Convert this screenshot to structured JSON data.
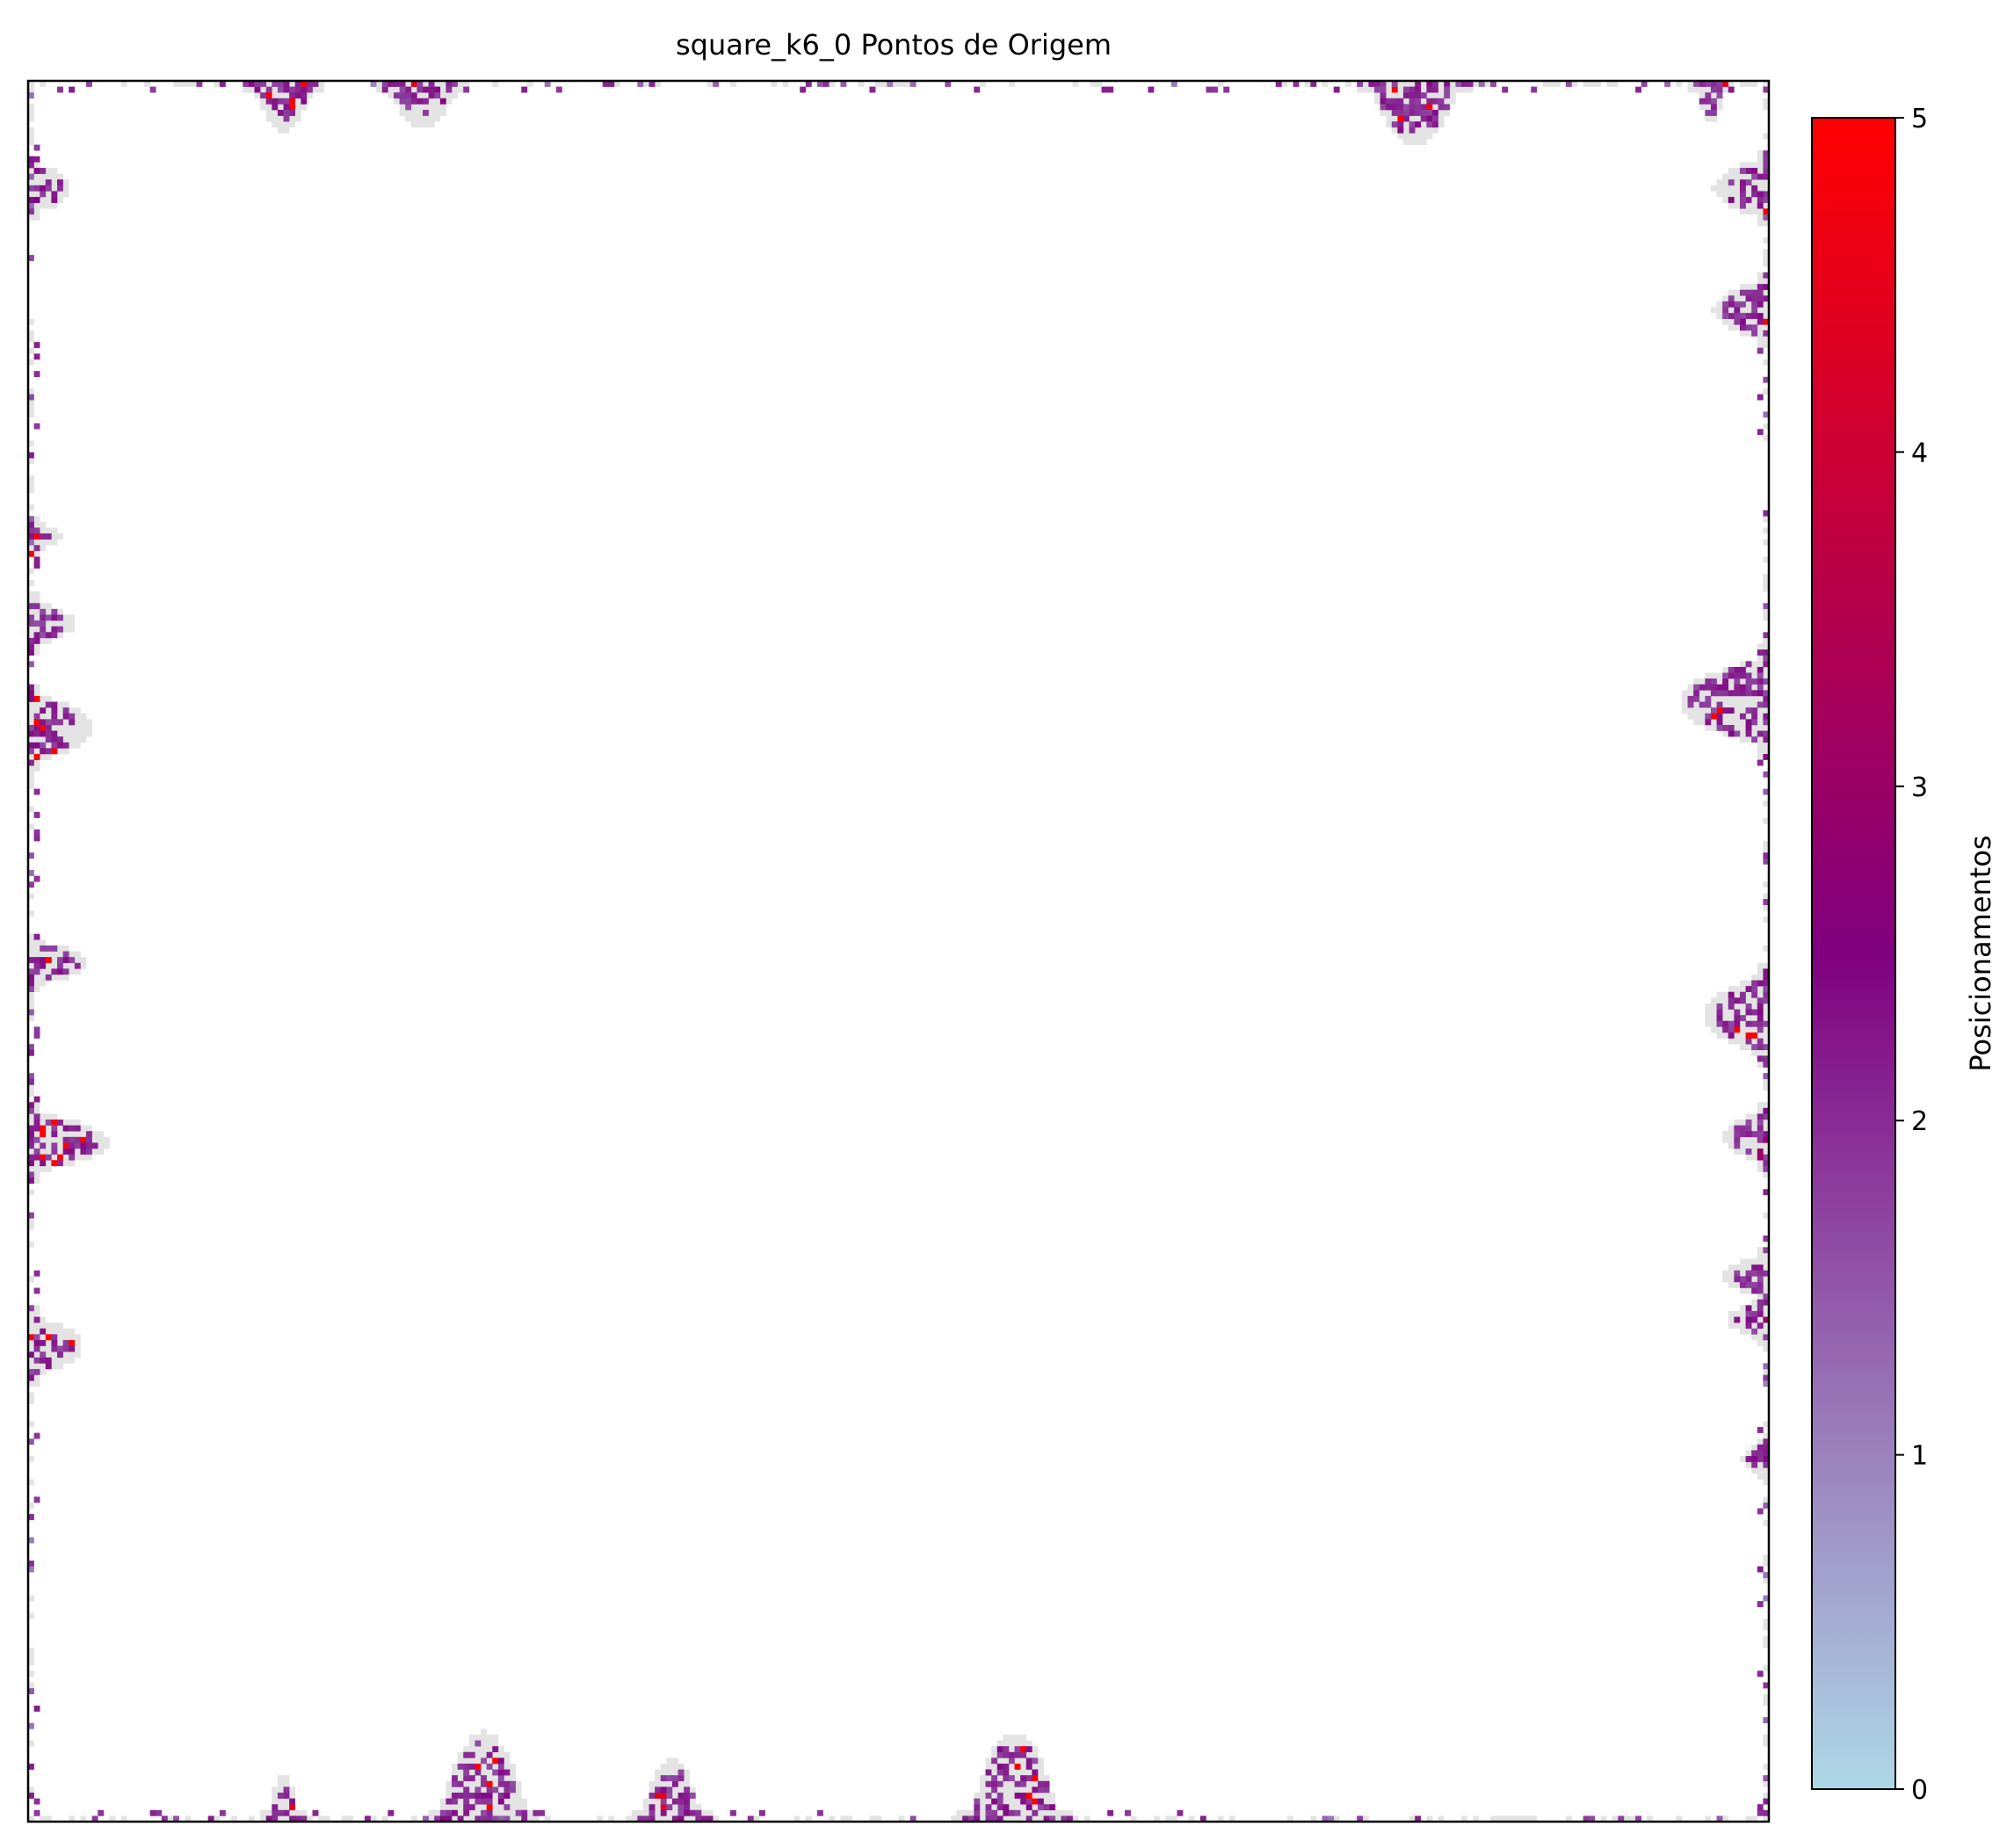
{
  "chart_data": {
    "type": "heatmap",
    "title": "square_k6_0 Pontos de Origem",
    "xlabel": "",
    "ylabel": "",
    "x_ticks_visible": false,
    "y_ticks_visible": false,
    "grid": false,
    "value_range": [
      0,
      5
    ],
    "background_value": "empty",
    "colormap": {
      "stops": [
        {
          "value": 0,
          "color": "#add8e6"
        },
        {
          "value": 2.5,
          "color": "#800080"
        },
        {
          "value": 5,
          "color": "#ff0000"
        }
      ],
      "empty_color": "#ffffff",
      "edge_halo_color": "#e3e3e3"
    },
    "colorbar": {
      "label": "Posicionamentos",
      "ticks": [
        0,
        1,
        2,
        3,
        4,
        5
      ],
      "placement": "right"
    },
    "distribution": "All nonzero cells lie along the border of the square domain; interior is empty. Values mostly around 2, isolated cells up to 5.",
    "clusters": [
      {
        "edge": "top",
        "pos": 0.145,
        "width": 0.03,
        "depth": 0.022,
        "peak": 5
      },
      {
        "edge": "top",
        "pos": 0.225,
        "width": 0.035,
        "depth": 0.02,
        "peak": 4.5
      },
      {
        "edge": "top",
        "pos": 0.795,
        "width": 0.045,
        "depth": 0.03,
        "peak": 5
      },
      {
        "edge": "top",
        "pos": 0.965,
        "width": 0.015,
        "depth": 0.018,
        "peak": 4.5
      },
      {
        "edge": "bottom",
        "pos": 0.145,
        "width": 0.015,
        "depth": 0.02,
        "peak": 4.5
      },
      {
        "edge": "bottom",
        "pos": 0.26,
        "width": 0.045,
        "depth": 0.045,
        "peak": 5
      },
      {
        "edge": "bottom",
        "pos": 0.368,
        "width": 0.03,
        "depth": 0.03,
        "peak": 4.5
      },
      {
        "edge": "bottom",
        "pos": 0.565,
        "width": 0.045,
        "depth": 0.045,
        "peak": 5
      },
      {
        "edge": "left",
        "pos": 0.06,
        "width": 0.025,
        "depth": 0.018,
        "peak": 2.5
      },
      {
        "edge": "left",
        "pos": 0.26,
        "width": 0.014,
        "depth": 0.012,
        "peak": 5
      },
      {
        "edge": "left",
        "pos": 0.31,
        "width": 0.022,
        "depth": 0.02,
        "peak": 5
      },
      {
        "edge": "left",
        "pos": 0.37,
        "width": 0.035,
        "depth": 0.03,
        "peak": 5
      },
      {
        "edge": "left",
        "pos": 0.505,
        "width": 0.022,
        "depth": 0.028,
        "peak": 5
      },
      {
        "edge": "left",
        "pos": 0.608,
        "width": 0.03,
        "depth": 0.04,
        "peak": 5
      },
      {
        "edge": "left",
        "pos": 0.725,
        "width": 0.03,
        "depth": 0.025,
        "peak": 5
      },
      {
        "edge": "right",
        "pos": 0.06,
        "width": 0.03,
        "depth": 0.025,
        "peak": 5
      },
      {
        "edge": "right",
        "pos": 0.13,
        "width": 0.03,
        "depth": 0.025,
        "peak": 5
      },
      {
        "edge": "right",
        "pos": 0.355,
        "width": 0.045,
        "depth": 0.045,
        "peak": 5
      },
      {
        "edge": "right",
        "pos": 0.535,
        "width": 0.04,
        "depth": 0.03,
        "peak": 5
      },
      {
        "edge": "right",
        "pos": 0.605,
        "width": 0.025,
        "depth": 0.02,
        "peak": 3
      },
      {
        "edge": "right",
        "pos": 0.685,
        "width": 0.02,
        "depth": 0.02,
        "peak": 5
      },
      {
        "edge": "right",
        "pos": 0.71,
        "width": 0.02,
        "depth": 0.018,
        "peak": 3
      },
      {
        "edge": "right",
        "pos": 0.79,
        "width": 0.012,
        "depth": 0.01,
        "peak": 2
      }
    ]
  }
}
